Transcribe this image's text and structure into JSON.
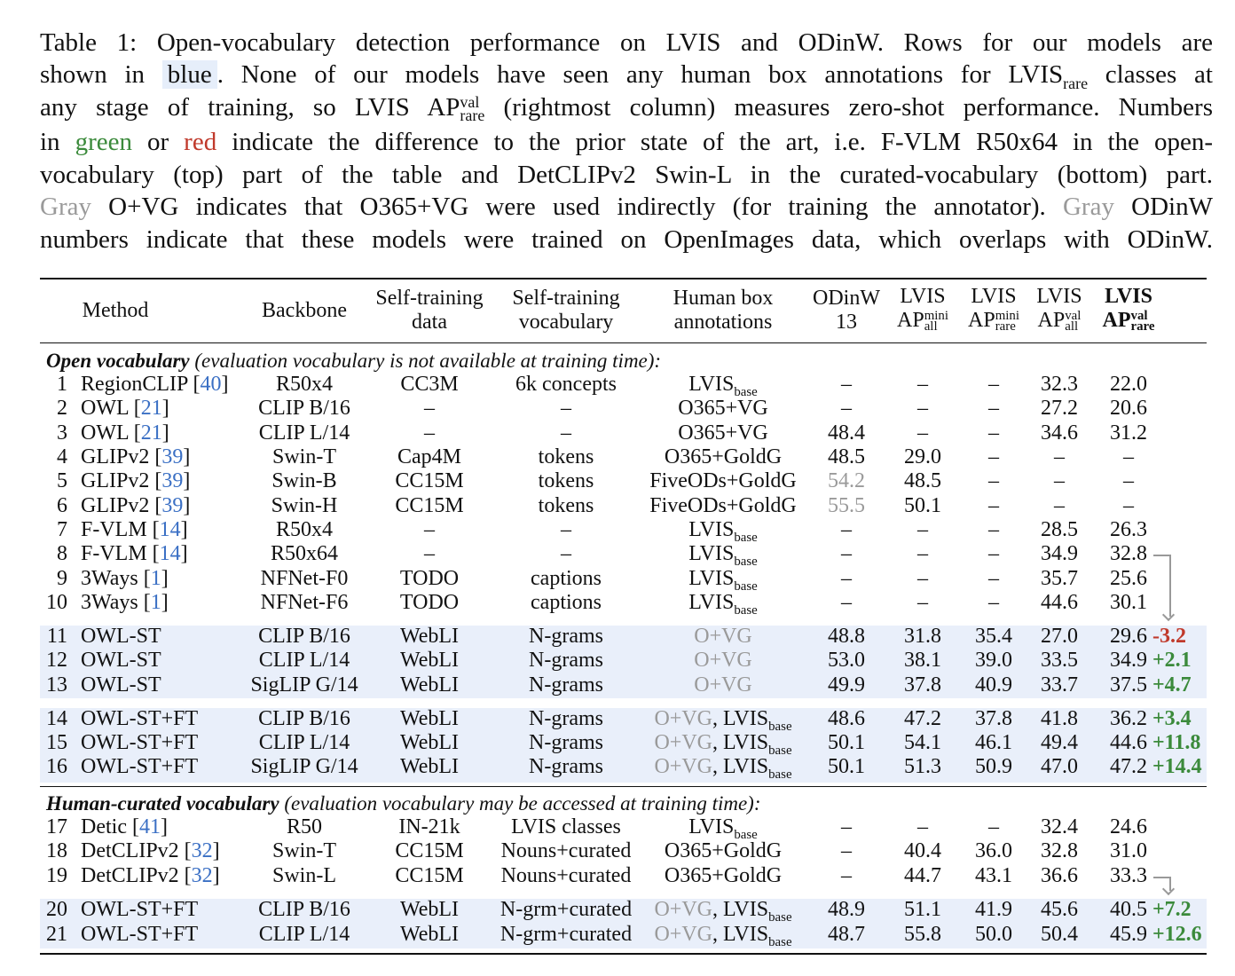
{
  "caption": [
    [
      {
        "t": "Table 1: Open-vocabulary detection performance on LVIS and ODinW. Rows for our models are"
      }
    ],
    [
      {
        "t": "shown in "
      },
      {
        "t": "blue",
        "s": "blue"
      },
      {
        "t": ". None of our models have seen any human box annotations for LVIS"
      },
      {
        "t": "rare",
        "s": "sub"
      },
      {
        "t": " classes at"
      }
    ],
    [
      {
        "t": "any stage of training, so LVIS AP"
      },
      {
        "t": "val|rare",
        "s": "ss"
      },
      {
        "t": " (rightmost column) measures zero-shot performance. Numbers"
      }
    ],
    [
      {
        "t": "in "
      },
      {
        "t": "green",
        "s": "green"
      },
      {
        "t": " or "
      },
      {
        "t": "red",
        "s": "red"
      },
      {
        "t": " indicate the difference to the prior state of the art, i.e. F-VLM R50x64 in the open-"
      }
    ],
    [
      {
        "t": "vocabulary (top) part of the table and DetCLIPv2 Swin-L in the curated-vocabulary (bottom) part."
      }
    ],
    [
      {
        "t": "Gray",
        "s": "gray"
      },
      {
        "t": " O+VG indicates that O365+VG were used indirectly (for training the annotator). "
      },
      {
        "t": "Gray",
        "s": "gray"
      },
      {
        "t": " ODinW"
      }
    ],
    [
      {
        "t": "numbers indicate that these models were trained on OpenImages data, which overlaps with ODinW."
      }
    ]
  ],
  "headers": {
    "method": "Method",
    "backbone": "Backbone",
    "st_data": [
      "Self-training",
      "data"
    ],
    "st_vocab": [
      "Self-training",
      "vocabulary"
    ],
    "human": [
      "Human box",
      "annotations"
    ],
    "odinw": [
      "ODinW",
      "13"
    ],
    "lvis_mini_all": {
      "top": "LVIS",
      "ap": "AP",
      "sup": "mini",
      "sub": "all"
    },
    "lvis_mini_rare": {
      "top": "LVIS",
      "ap": "AP",
      "sup": "mini",
      "sub": "rare"
    },
    "lvis_val_all": {
      "top": "LVIS",
      "ap": "AP",
      "sup": "val",
      "sub": "all"
    },
    "lvis_val_rare": {
      "top": "LVIS",
      "ap": "AP",
      "sup": "val",
      "sub": "rare"
    }
  },
  "sections": [
    {
      "bold": "Open vocabulary",
      "rest": " (evaluation vocabulary is not available at training time):"
    },
    {
      "bold": "Human-curated vocabulary",
      "rest": " (evaluation vocabulary may be accessed at training time):"
    }
  ],
  "rows": [
    {
      "n": "1",
      "method": "RegionCLIP",
      "ref": "40",
      "backbone": "R50x4",
      "data": "CC3M",
      "vocab": "6k concepts",
      "hg": "",
      "h": "LVIS",
      "hs": "base",
      "odinw": "–",
      "mall": "–",
      "mrare": "–",
      "vall": "32.3",
      "vrare": "22.0",
      "delta": ""
    },
    {
      "n": "2",
      "method": "OWL",
      "ref": "21",
      "backbone": "CLIP B/16",
      "data": "–",
      "vocab": "–",
      "hg": "",
      "h": "O365+VG",
      "hs": "",
      "odinw": "–",
      "mall": "–",
      "mrare": "–",
      "vall": "27.2",
      "vrare": "20.6",
      "delta": ""
    },
    {
      "n": "3",
      "method": "OWL",
      "ref": "21",
      "backbone": "CLIP L/14",
      "data": "–",
      "vocab": "–",
      "hg": "",
      "h": "O365+VG",
      "hs": "",
      "odinw": "48.4",
      "mall": "–",
      "mrare": "–",
      "vall": "34.6",
      "vrare": "31.2",
      "delta": ""
    },
    {
      "n": "4",
      "method": "GLIPv2",
      "ref": "39",
      "backbone": "Swin-T",
      "data": "Cap4M",
      "vocab": "tokens",
      "hg": "",
      "h": "O365+GoldG",
      "hs": "",
      "odinw": "48.5",
      "mall": "29.0",
      "mrare": "–",
      "vall": "–",
      "vrare": "–",
      "delta": ""
    },
    {
      "n": "5",
      "method": "GLIPv2",
      "ref": "39",
      "backbone": "Swin-B",
      "data": "CC15M",
      "vocab": "tokens",
      "hg": "",
      "h": "FiveODs+GoldG",
      "hs": "",
      "odinw": "54.2",
      "odinw_gray": true,
      "mall": "48.5",
      "mrare": "–",
      "vall": "–",
      "vrare": "–",
      "delta": ""
    },
    {
      "n": "6",
      "method": "GLIPv2",
      "ref": "39",
      "backbone": "Swin-H",
      "data": "CC15M",
      "vocab": "tokens",
      "hg": "",
      "h": "FiveODs+GoldG",
      "hs": "",
      "odinw": "55.5",
      "odinw_gray": true,
      "mall": "50.1",
      "mrare": "–",
      "vall": "–",
      "vrare": "–",
      "delta": ""
    },
    {
      "n": "7",
      "method": "F-VLM",
      "ref": "14",
      "backbone": "R50x4",
      "data": "–",
      "vocab": "–",
      "hg": "",
      "h": "LVIS",
      "hs": "base",
      "odinw": "–",
      "mall": "–",
      "mrare": "–",
      "vall": "28.5",
      "vrare": "26.3",
      "delta": ""
    },
    {
      "n": "8",
      "method": "F-VLM",
      "ref": "14",
      "backbone": "R50x64",
      "data": "–",
      "vocab": "–",
      "hg": "",
      "h": "LVIS",
      "hs": "base",
      "odinw": "–",
      "mall": "–",
      "mrare": "–",
      "vall": "34.9",
      "vrare": "32.8",
      "delta": ""
    },
    {
      "n": "9",
      "method": "3Ways",
      "ref": "1",
      "backbone": "NFNet-F0",
      "data": "TODO",
      "vocab": "captions",
      "hg": "",
      "h": "LVIS",
      "hs": "base",
      "odinw": "–",
      "mall": "–",
      "mrare": "–",
      "vall": "35.7",
      "vrare": "25.6",
      "delta": ""
    },
    {
      "n": "10",
      "method": "3Ways",
      "ref": "1",
      "backbone": "NFNet-F6",
      "data": "TODO",
      "vocab": "captions",
      "hg": "",
      "h": "LVIS",
      "hs": "base",
      "odinw": "–",
      "mall": "–",
      "mrare": "–",
      "vall": "44.6",
      "vrare": "30.1",
      "delta": ""
    },
    {
      "n": "11",
      "method": "OWL-ST",
      "ref": "",
      "backbone": "CLIP B/16",
      "data": "WebLI",
      "vocab": "N-grams",
      "hg": "O+VG",
      "h": "",
      "hs": "",
      "odinw": "48.8",
      "mall": "31.8",
      "mrare": "35.4",
      "vall": "27.0",
      "vrare": "29.6",
      "delta": "-3.2"
    },
    {
      "n": "12",
      "method": "OWL-ST",
      "ref": "",
      "backbone": "CLIP L/14",
      "data": "WebLI",
      "vocab": "N-grams",
      "hg": "O+VG",
      "h": "",
      "hs": "",
      "odinw": "53.0",
      "mall": "38.1",
      "mrare": "39.0",
      "vall": "33.5",
      "vrare": "34.9",
      "delta": "+2.1"
    },
    {
      "n": "13",
      "method": "OWL-ST",
      "ref": "",
      "backbone": "SigLIP G/14",
      "data": "WebLI",
      "vocab": "N-grams",
      "hg": "O+VG",
      "h": "",
      "hs": "",
      "odinw": "49.9",
      "mall": "37.8",
      "mrare": "40.9",
      "vall": "33.7",
      "vrare": "37.5",
      "delta": "+4.7"
    },
    {
      "n": "14",
      "method": "OWL-ST+FT",
      "ref": "",
      "backbone": "CLIP B/16",
      "data": "WebLI",
      "vocab": "N-grams",
      "hg": "O+VG",
      "h": ", LVIS",
      "hs": "base",
      "odinw": "48.6",
      "mall": "47.2",
      "mrare": "37.8",
      "vall": "41.8",
      "vrare": "36.2",
      "delta": "+3.4"
    },
    {
      "n": "15",
      "method": "OWL-ST+FT",
      "ref": "",
      "backbone": "CLIP L/14",
      "data": "WebLI",
      "vocab": "N-grams",
      "hg": "O+VG",
      "h": ", LVIS",
      "hs": "base",
      "odinw": "50.1",
      "mall": "54.1",
      "mrare": "46.1",
      "vall": "49.4",
      "vrare": "44.6",
      "delta": "+11.8"
    },
    {
      "n": "16",
      "method": "OWL-ST+FT",
      "ref": "",
      "backbone": "SigLIP G/14",
      "data": "WebLI",
      "vocab": "N-grams",
      "hg": "O+VG",
      "h": ", LVIS",
      "hs": "base",
      "odinw": "50.1",
      "mall": "51.3",
      "mrare": "50.9",
      "vall": "47.0",
      "vrare": "47.2",
      "delta": "+14.4"
    },
    {
      "n": "17",
      "method": "Detic",
      "ref": "41",
      "backbone": "R50",
      "data": "IN-21k",
      "vocab": "LVIS classes",
      "hg": "",
      "h": "LVIS",
      "hs": "base",
      "odinw": "–",
      "mall": "–",
      "mrare": "–",
      "vall": "32.4",
      "vrare": "24.6",
      "delta": ""
    },
    {
      "n": "18",
      "method": "DetCLIPv2",
      "ref": "32",
      "backbone": "Swin-T",
      "data": "CC15M",
      "vocab": "Nouns+curated",
      "hg": "",
      "h": "O365+GoldG",
      "hs": "",
      "odinw": "–",
      "mall": "40.4",
      "mrare": "36.0",
      "vall": "32.8",
      "vrare": "31.0",
      "delta": ""
    },
    {
      "n": "19",
      "method": "DetCLIPv2",
      "ref": "32",
      "backbone": "Swin-L",
      "data": "CC15M",
      "vocab": "Nouns+curated",
      "hg": "",
      "h": "O365+GoldG",
      "hs": "",
      "odinw": "–",
      "mall": "44.7",
      "mrare": "43.1",
      "vall": "36.6",
      "vrare": "33.3",
      "delta": ""
    },
    {
      "n": "20",
      "method": "OWL-ST+FT",
      "ref": "",
      "backbone": "CLIP B/16",
      "data": "WebLI",
      "vocab": "N-grm+curated",
      "hg": "O+VG",
      "h": ", LVIS",
      "hs": "base",
      "odinw": "48.9",
      "mall": "51.1",
      "mrare": "41.9",
      "vall": "45.6",
      "vrare": "40.5",
      "delta": "+7.2"
    },
    {
      "n": "21",
      "method": "OWL-ST+FT",
      "ref": "",
      "backbone": "CLIP L/14",
      "data": "WebLI",
      "vocab": "N-grm+curated",
      "hg": "O+VG",
      "h": ", LVIS",
      "hs": "base",
      "odinw": "48.7",
      "mall": "55.8",
      "mrare": "50.0",
      "vall": "50.4",
      "vrare": "45.9",
      "delta": "+12.6"
    }
  ],
  "colors": {
    "highlight": "#e9effa",
    "positive": "#3b8a3b",
    "negative": "#c0392b",
    "gray": "#9a9a9a",
    "citation": "#3a6fc4"
  }
}
